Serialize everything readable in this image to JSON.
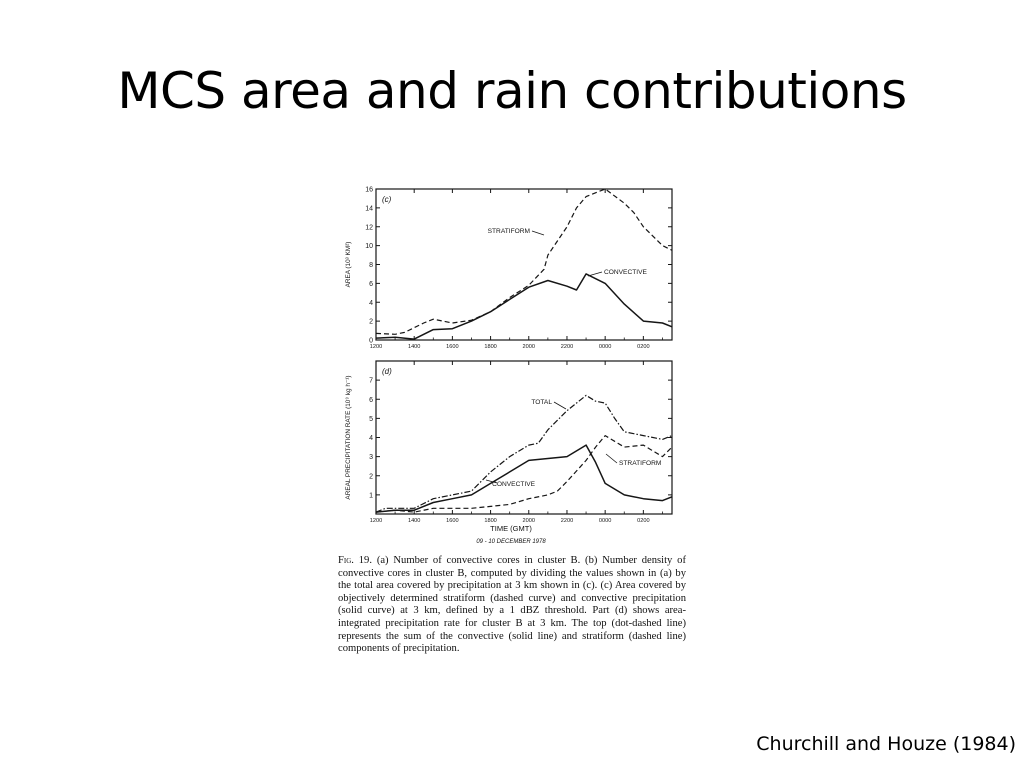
{
  "slide": {
    "title": "MCS area and rain contributions",
    "citation": "Churchill and Houze (1984)"
  },
  "figure": {
    "caption_label": "Fig. 19.",
    "caption_text": "(a) Number of convective cores in cluster B. (b) Number density of convective cores in cluster B, computed by dividing the values shown in (a) by the total area covered by precipitation at 3 km shown in (c). (c) Area covered by objectively determined stratiform (dashed curve) and convective precipitation (solid curve) at 3 km, defined by a 1 dBZ threshold. Part (d) shows area-integrated precipitation rate for cluster B at 3 km. The top (dot-dashed line) represents the sum of the convective (solid line) and stratiform (dashed line) components of precipitation.",
    "x_tick_labels": [
      "1200",
      "1400",
      "1600",
      "1800",
      "2000",
      "2200",
      "0000",
      "0200"
    ],
    "x_label": "TIME (GMT)",
    "x_sublabel": "09 - 10 DECEMBER 1978"
  },
  "chart_data": [
    {
      "type": "line",
      "panel_label": "(c)",
      "ylabel": "AREA (10³ KM²)",
      "ylim": [
        0,
        16
      ],
      "yticks": [
        0,
        2,
        4,
        6,
        8,
        10,
        12,
        14,
        16
      ],
      "xlim": [
        12,
        27.5
      ],
      "x_unit": "hours GMT, 0000 = 24",
      "series": [
        {
          "name": "STRATIFORM",
          "style": "dashed",
          "x": [
            12,
            13,
            13.5,
            14.5,
            15,
            16,
            17,
            18,
            19,
            20,
            20.8,
            21,
            22,
            22.5,
            23,
            24,
            25,
            25.5,
            26,
            27,
            27.5
          ],
          "y": [
            0.7,
            0.6,
            0.8,
            1.8,
            2.2,
            1.8,
            2.1,
            3,
            4.5,
            5.8,
            7.5,
            9,
            12,
            14,
            15.2,
            16,
            14.5,
            13.5,
            12,
            10,
            9.5
          ]
        },
        {
          "name": "CONVECTIVE",
          "style": "solid",
          "x": [
            12,
            13,
            14,
            15,
            16,
            17,
            18,
            19,
            20,
            21,
            22,
            22.5,
            23,
            24,
            25,
            26,
            27,
            27.5
          ],
          "y": [
            0.2,
            0.3,
            0.1,
            1.1,
            1.2,
            2,
            3,
            4.3,
            5.6,
            6.3,
            5.7,
            5.3,
            7,
            6,
            3.8,
            2,
            1.8,
            1.4
          ]
        }
      ]
    },
    {
      "type": "line",
      "panel_label": "(d)",
      "ylabel": "AREAL PRECIPITATION RATE (10⁹ kg h⁻¹)",
      "ylim": [
        0,
        8
      ],
      "yticks": [
        1,
        2,
        3,
        4,
        5,
        6,
        7
      ],
      "xlim": [
        12,
        27.5
      ],
      "x_unit": "hours GMT, 0000 = 24",
      "series": [
        {
          "name": "TOTAL",
          "style": "dot-dashed",
          "x": [
            12,
            12.5,
            13,
            14,
            15,
            16,
            17,
            18,
            19,
            20,
            20.5,
            21,
            22,
            23,
            23.5,
            24,
            24.5,
            25,
            26,
            27,
            27.5
          ],
          "y": [
            0.1,
            0.3,
            0.3,
            0.3,
            0.8,
            1,
            1.2,
            2.2,
            3,
            3.6,
            3.7,
            4.4,
            5.4,
            6.2,
            5.9,
            5.8,
            5,
            4.3,
            4.1,
            3.9,
            4.1
          ]
        },
        {
          "name": "STRATIFORM",
          "style": "dashed",
          "x": [
            12,
            13,
            14,
            15,
            16,
            17,
            18,
            19,
            20,
            21,
            21.5,
            22,
            23,
            23.5,
            24,
            25,
            26,
            26.5,
            27,
            27.5
          ],
          "y": [
            0.1,
            0.2,
            0.1,
            0.3,
            0.3,
            0.3,
            0.4,
            0.5,
            0.8,
            1,
            1.2,
            1.7,
            2.8,
            3.5,
            4.1,
            3.5,
            3.6,
            3.3,
            3,
            3.5
          ]
        },
        {
          "name": "CONVECTIVE",
          "style": "solid",
          "x": [
            12,
            13,
            14,
            15,
            16,
            17,
            18,
            19,
            20,
            21,
            22,
            23,
            23.5,
            24,
            25,
            26,
            27,
            27.5
          ],
          "y": [
            0.1,
            0.2,
            0.2,
            0.6,
            0.8,
            1,
            1.6,
            2.2,
            2.8,
            2.9,
            3,
            3.6,
            2.7,
            1.6,
            1,
            0.8,
            0.7,
            0.9
          ]
        }
      ]
    }
  ]
}
